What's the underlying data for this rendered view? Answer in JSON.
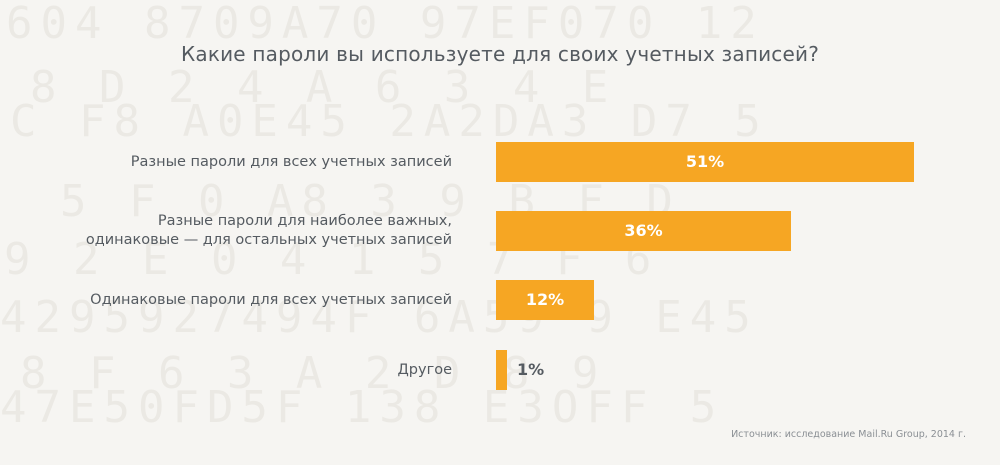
{
  "title": "Какие пароли вы используете для своих учетных записей?",
  "source": "Источник: исследование Mail.Ru Group, 2014 г.",
  "colors": {
    "bar": "#f6a623",
    "background": "#f6f5f2",
    "text": "#555b61"
  },
  "chart_data": {
    "type": "bar",
    "orientation": "horizontal",
    "title": "Какие пароли вы используете для своих учетных записей?",
    "xlim": [
      0,
      51
    ],
    "grid": false,
    "categories": [
      [
        "Разные пароли для всех учетных записей"
      ],
      [
        "Разные пароли для наиболее важных,",
        "одинаковые — для остальных учетных записей"
      ],
      [
        "Одинаковые пароли для всех учетных записей"
      ],
      [
        "Другое"
      ]
    ],
    "values": [
      51,
      36,
      12,
      1
    ],
    "value_labels": [
      "51%",
      "36%",
      "12%",
      "1%"
    ]
  }
}
